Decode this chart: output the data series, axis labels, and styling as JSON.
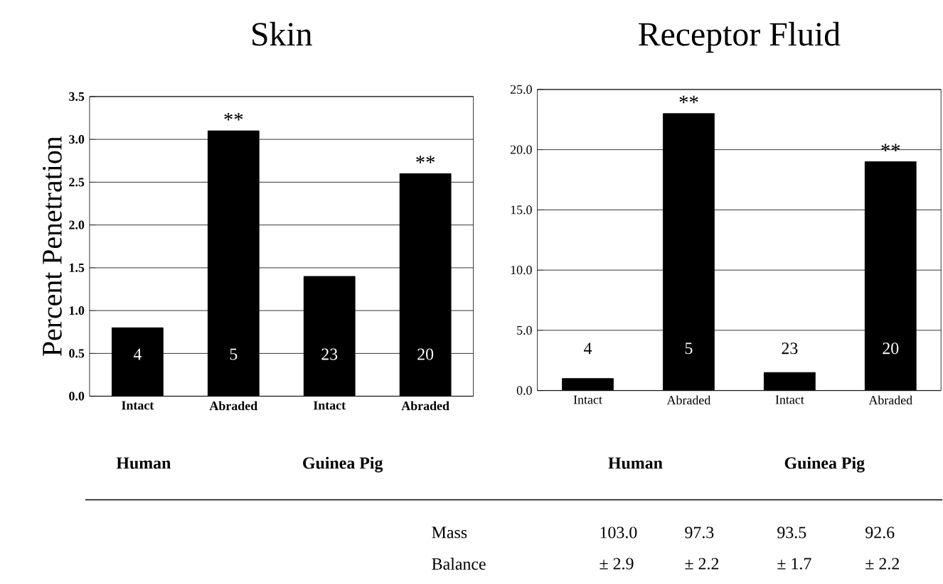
{
  "chart_data": [
    {
      "type": "bar",
      "title": "Skin",
      "ylabel": "Percent Penetration",
      "categories": [
        "Intact",
        "Abraded",
        "Intact",
        "Abraded"
      ],
      "values": [
        0.8,
        3.1,
        1.4,
        2.6
      ],
      "color": "#000000",
      "ylim": [
        0,
        3.5
      ],
      "yticks": [
        {
          "value": 0,
          "label": "0.0"
        },
        {
          "value": 0.5,
          "label": "0.5"
        },
        {
          "value": 1,
          "label": "1.0"
        },
        {
          "value": 1.5,
          "label": "1.5"
        },
        {
          "value": 2,
          "label": "2.0"
        },
        {
          "value": 2.5,
          "label": "2.5"
        },
        {
          "value": 3,
          "label": "3.0"
        },
        {
          "value": 3.5,
          "label": "3.5"
        }
      ],
      "grid": "y",
      "annotations": [
        "4",
        "5",
        "23",
        "20",
        "Human",
        "Guinea Pig",
        "**",
        "**"
      ]
    },
    {
      "type": "bar",
      "title": "Receptor Fluid",
      "categories": [
        "Intact",
        "Abraded",
        "Intact",
        "Abraded"
      ],
      "values": [
        1.0,
        23,
        1.5,
        19
      ],
      "color": "#000000",
      "ylim": [
        0,
        25
      ],
      "yticks": [
        {
          "value": 0,
          "label": "0.0"
        },
        {
          "value": 5,
          "label": "5.0"
        },
        {
          "value": 10,
          "label": "10.0"
        },
        {
          "value": 15,
          "label": "15.0"
        },
        {
          "value": 20,
          "label": "20.0"
        },
        {
          "value": 25,
          "label": "25.0"
        }
      ],
      "grid": "y",
      "annotations": [
        "4",
        "5",
        "23",
        "20",
        "Human",
        "Guinea Pig",
        "**",
        "**",
        "Mass",
        "Balance",
        "103.0",
        "± 2.9",
        "97.3",
        "± 2.2",
        "93.5",
        "± 1.7",
        "92.6",
        "± 2.2"
      ]
    }
  ]
}
